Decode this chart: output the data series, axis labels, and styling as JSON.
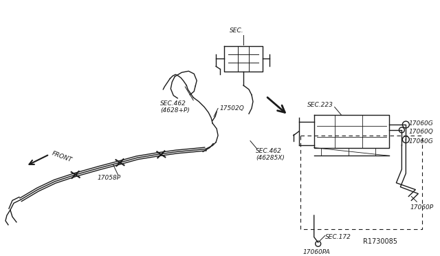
{
  "bg_color": "#ffffff",
  "line_color": "#1a1a1a",
  "diagram_ref": "R1730085",
  "labels": {
    "SEC_top": "SEC.",
    "SEC_462_left": "SEC.462\n(4628+P)",
    "17502Q": "17502Q",
    "SEC_462_right": "SEC.462\n(46285X)",
    "17058P": "17058P",
    "FRONT": "FRONT",
    "SEC_223": "SEC.223",
    "17060G_top": "17060G",
    "17060Q": "17060Q",
    "17060G_mid": "17060G",
    "17060P": "17060P",
    "SEC_172": "SEC.172",
    "17060PA": "17060PA",
    "R1730085": "R1730085"
  }
}
